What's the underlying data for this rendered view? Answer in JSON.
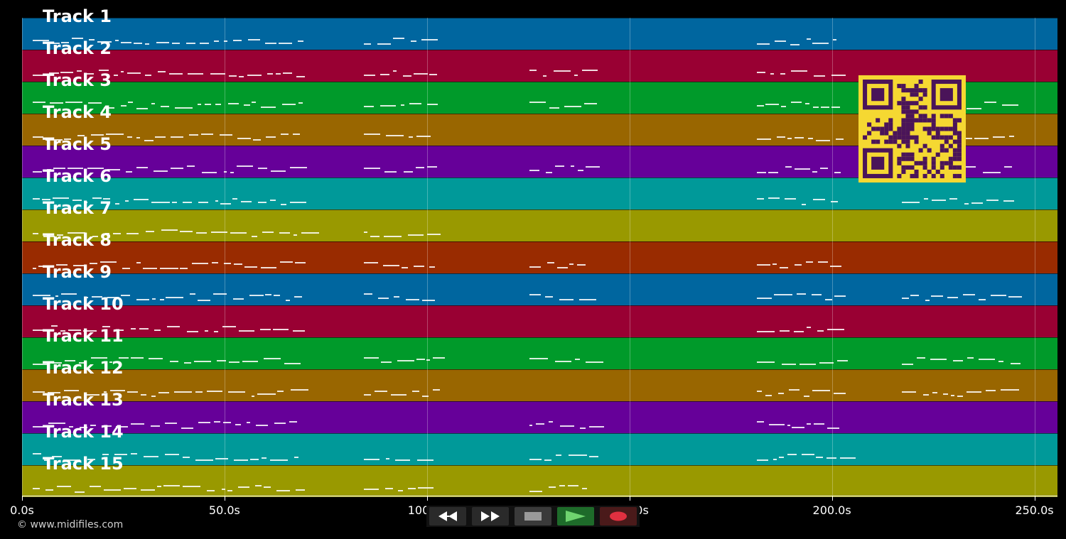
{
  "tracks": [
    {
      "label": "Track 1",
      "color": "#00669f"
    },
    {
      "label": "Track 2",
      "color": "#990033"
    },
    {
      "label": "Track 3",
      "color": "#009a2a"
    },
    {
      "label": "Track 4",
      "color": "#996600"
    },
    {
      "label": "Track 5",
      "color": "#660099"
    },
    {
      "label": "Track 6",
      "color": "#009999"
    },
    {
      "label": "Track 7",
      "color": "#999900"
    },
    {
      "label": "Track 8",
      "color": "#992b00"
    },
    {
      "label": "Track 9",
      "color": "#00669f"
    },
    {
      "label": "Track 10",
      "color": "#990033"
    },
    {
      "label": "Track 11",
      "color": "#009a2a"
    },
    {
      "label": "Track 12",
      "color": "#996600"
    },
    {
      "label": "Track 13",
      "color": "#660099"
    },
    {
      "label": "Track 14",
      "color": "#009999"
    },
    {
      "label": "Track 15",
      "color": "#999900"
    }
  ],
  "time_axis": {
    "ticks": [
      "0.0s",
      "50.0s",
      "100.0s",
      "150.0s",
      "200.0s",
      "250.0s"
    ],
    "tick_values_s": [
      0,
      50,
      100,
      150,
      200,
      250
    ],
    "max_s": 255.7
  },
  "footer": {
    "copyright": "© www.midifiles.com"
  },
  "transport": [
    {
      "name": "rewind-button",
      "icon": "rewind-icon",
      "color": "#2a2a2a"
    },
    {
      "name": "fast-forward-button",
      "icon": "fast-forward-icon",
      "color": "#2a2a2a"
    },
    {
      "name": "stop-button",
      "icon": "stop-icon",
      "color": "#3a3a3a"
    },
    {
      "name": "play-button",
      "icon": "play-icon",
      "color": "#1e6b2a"
    },
    {
      "name": "record-button",
      "icon": "record-icon",
      "color": "#4a1a1a"
    }
  ],
  "qr_code": {
    "icon": "qr-code-icon",
    "color": "#f5d832",
    "module_color": "#4a1459"
  }
}
